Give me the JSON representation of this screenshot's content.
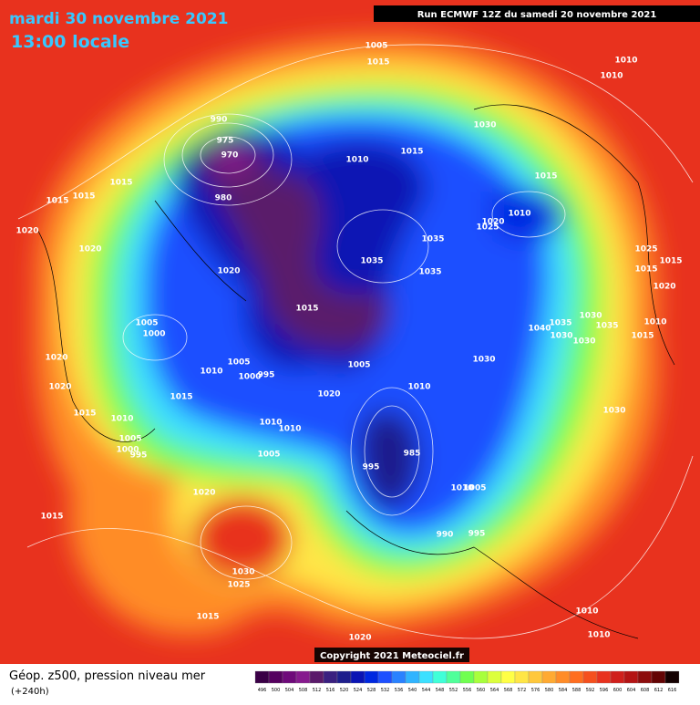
{
  "header": {
    "title": "mardi 30 novembre 2021",
    "subtitle": "13:00 locale",
    "run": "Run ECMWF 12Z du samedi 20 novembre 2021"
  },
  "footer": {
    "copyright": "Copyright 2021 Meteociel.fr",
    "caption": "Géop. z500, pression niveau mer",
    "lead": "(+240h)"
  },
  "scale": {
    "labels": [
      496,
      500,
      504,
      508,
      512,
      516,
      520,
      524,
      528,
      532,
      536,
      540,
      544,
      548,
      552,
      556,
      560,
      564,
      568,
      572,
      576,
      580,
      584,
      588,
      592,
      596,
      600,
      604,
      608,
      612,
      616
    ],
    "colors": [
      "#3a0046",
      "#55005f",
      "#6e0a7a",
      "#861a8e",
      "#5a1a6a",
      "#3a2080",
      "#1e1e8c",
      "#0a14b4",
      "#0028e0",
      "#1e50ff",
      "#2a82ff",
      "#30b4ff",
      "#3ce0ff",
      "#40ffd8",
      "#50ff9a",
      "#70ff50",
      "#a8ff3c",
      "#dcff3c",
      "#ffff46",
      "#ffe646",
      "#ffc83c",
      "#ffaa32",
      "#ff8c28",
      "#ff6e20",
      "#f5501e",
      "#e8321e",
      "#d0201c",
      "#b41414",
      "#8c0c0c",
      "#640404",
      "#140000"
    ]
  },
  "isobar_labels": [
    "1005",
    "1015",
    "1010",
    "1010",
    "990",
    "975",
    "970",
    "1015",
    "1010",
    "1030",
    "1015",
    "1015",
    "1015",
    "1015",
    "980",
    "1010",
    "1020",
    "1025",
    "1020",
    "1035",
    "1035",
    "1035",
    "1020",
    "1020",
    "1025",
    "1015",
    "1015",
    "1020",
    "1015",
    "1030",
    "1035",
    "1035",
    "1010",
    "1040",
    "1030",
    "1030",
    "1015",
    "1005",
    "1000",
    "1020",
    "1005",
    "1005",
    "1030",
    "1010",
    "1000",
    "995",
    "1020",
    "1020",
    "1010",
    "1015",
    "1015",
    "1010",
    "1030",
    "1010",
    "1010",
    "1005",
    "1000",
    "995",
    "985",
    "1005",
    "995",
    "1010",
    "1005",
    "1020",
    "1015",
    "990",
    "995",
    "1030",
    "1025",
    "1015",
    "1010",
    "1010",
    "1020"
  ]
}
